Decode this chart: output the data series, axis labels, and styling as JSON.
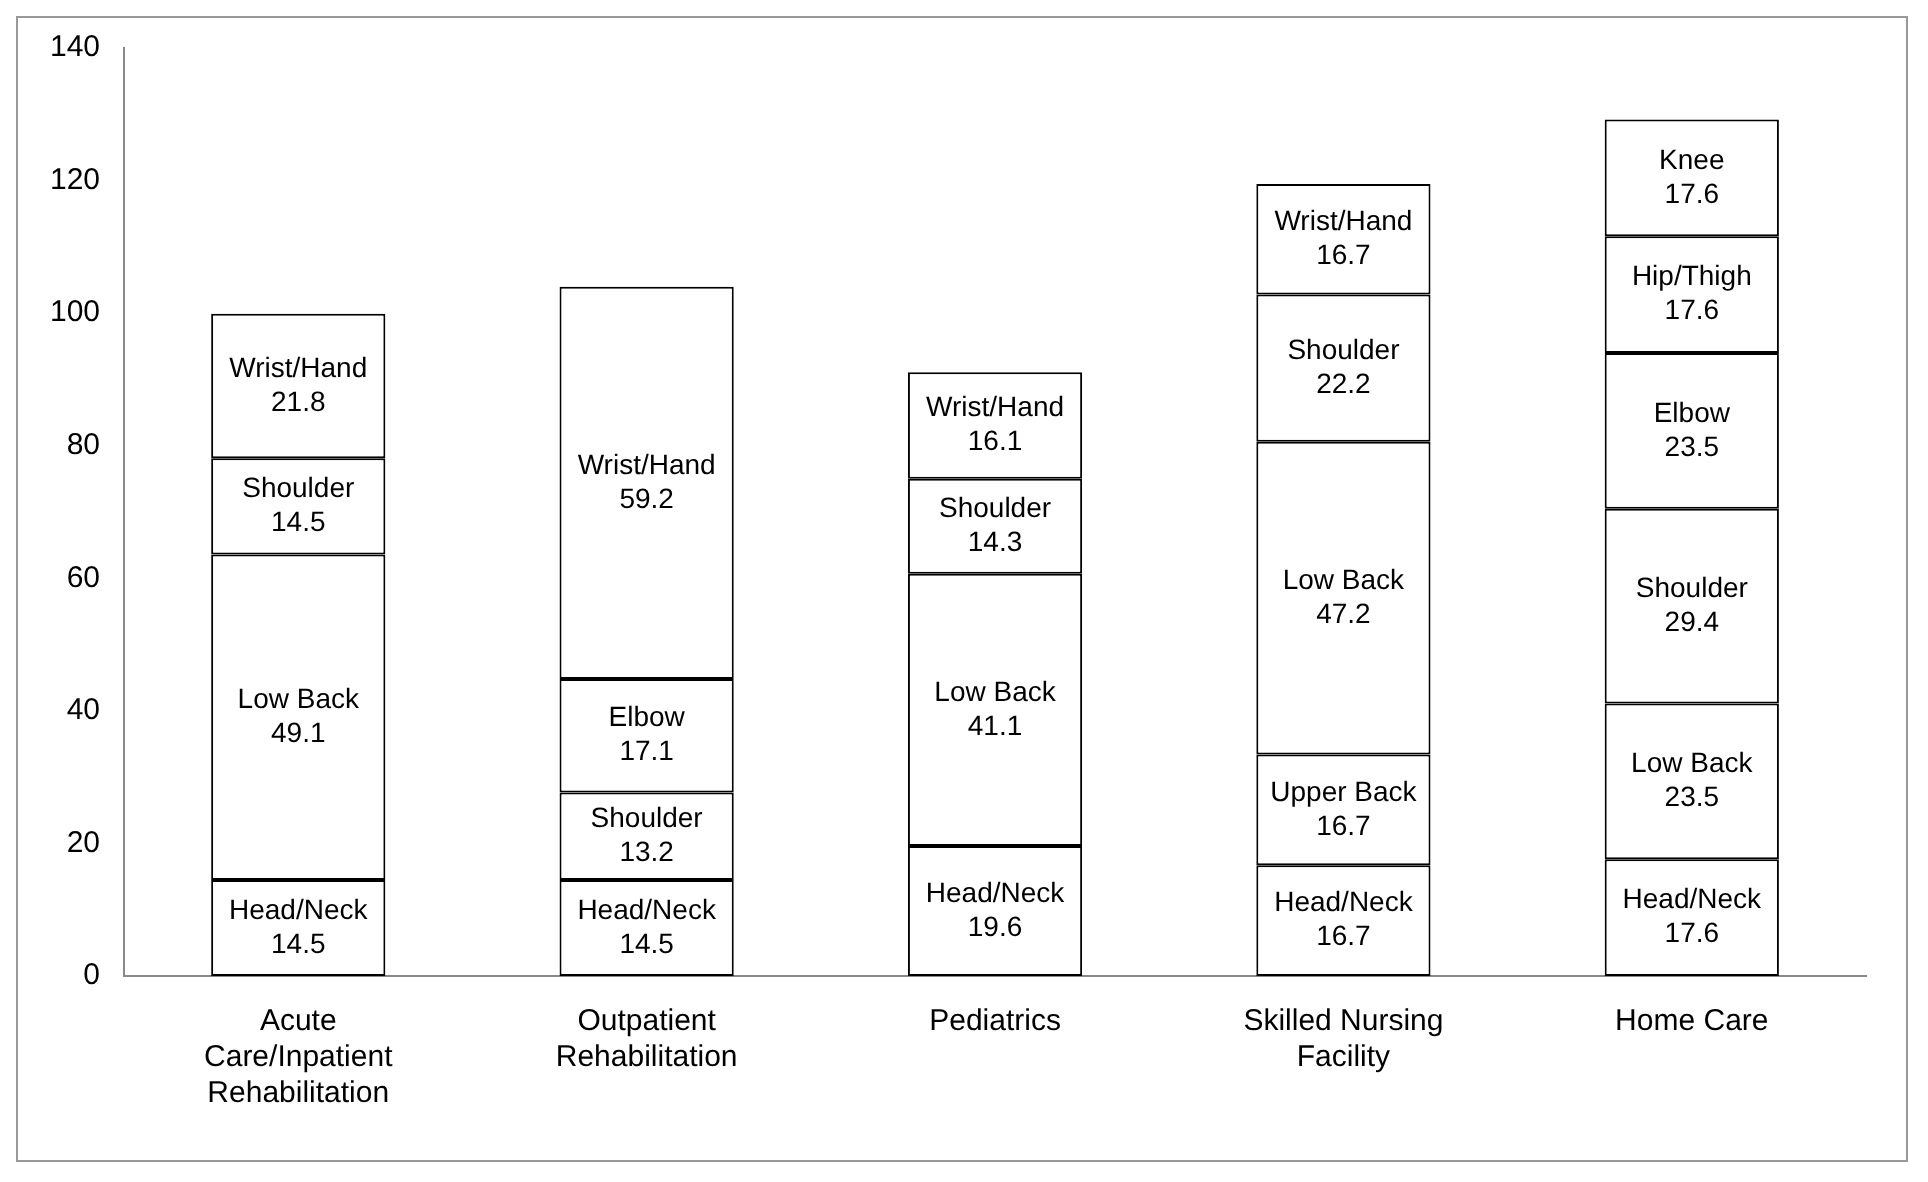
{
  "chart_data": {
    "type": "bar",
    "stacked": true,
    "data_labels": true,
    "categories": [
      "Acute Care/Inpatient Rehabilitation",
      "Outpatient Rehabilitation",
      "Pediatrics",
      "Skilled Nursing Facility",
      "Home Care"
    ],
    "series": [
      {
        "name": "Head/Neck",
        "color": "#ffffff",
        "values": [
          14.5,
          14.5,
          19.6,
          16.7,
          17.6
        ]
      },
      {
        "name": "Upper Back",
        "color": "#ffffff",
        "values": [
          null,
          null,
          null,
          16.7,
          null
        ]
      },
      {
        "name": "Low Back",
        "color": "#ffffff",
        "values": [
          49.1,
          null,
          41.1,
          47.2,
          23.5
        ]
      },
      {
        "name": "Shoulder",
        "color": "#ffffff",
        "values": [
          14.5,
          13.2,
          14.3,
          22.2,
          29.4
        ]
      },
      {
        "name": "Elbow",
        "color": "#ffffff",
        "values": [
          null,
          17.1,
          null,
          null,
          23.5
        ]
      },
      {
        "name": "Wrist/Hand",
        "color": "#ffffff",
        "values": [
          21.8,
          59.2,
          16.1,
          16.7,
          null
        ]
      },
      {
        "name": "Hip/Thigh",
        "color": "#ffffff",
        "values": [
          null,
          null,
          null,
          null,
          17.6
        ]
      },
      {
        "name": "Knee",
        "color": "#ffffff",
        "values": [
          null,
          null,
          null,
          null,
          17.6
        ]
      }
    ],
    "ylim": [
      0,
      140
    ],
    "yticks": [
      0,
      20,
      40,
      60,
      80,
      100,
      120,
      140
    ],
    "grid": false,
    "legend": false
  }
}
